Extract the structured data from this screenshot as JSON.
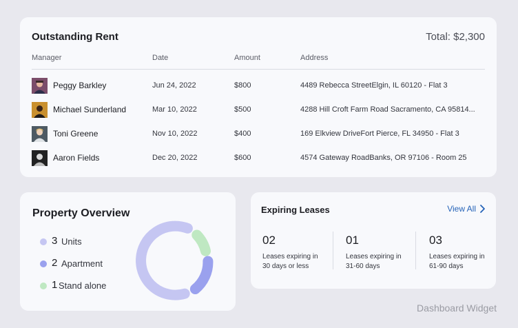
{
  "outstanding_rent": {
    "title": "Outstanding Rent",
    "total": "Total: $2,300",
    "columns": {
      "manager": "Manager",
      "date": "Date",
      "amount": "Amount",
      "address": "Address"
    },
    "rows": [
      {
        "manager": "Peggy Barkley",
        "date": "Jun 24, 2022",
        "amount": "$800",
        "address": "4489 Rebecca StreetElgin, IL 60120 - Flat 3",
        "avatar_color": "#7b4d6a"
      },
      {
        "manager": "Michael Sunderland",
        "date": "Mar 10, 2022",
        "amount": "$500",
        "address": "4288 Hill Croft Farm Road Sacramento, CA 95814...",
        "avatar_color": "#c9902e"
      },
      {
        "manager": "Toni Greene",
        "date": "Nov 10, 2022",
        "amount": "$400",
        "address": "169 Elkview DriveFort Pierce, FL 34950 - Flat 3",
        "avatar_color": "#4e5a63"
      },
      {
        "manager": "Aaron Fields",
        "date": "Dec 20, 2022",
        "amount": "$600",
        "address": "4574 Gateway RoadBanks, OR 97106 - Room 25",
        "avatar_color": "#222222"
      }
    ]
  },
  "property_overview": {
    "title": "Property Overview",
    "items": [
      {
        "count": "3",
        "label": "Units",
        "color": "#c5c6f2"
      },
      {
        "count": "2",
        "label": "Apartment",
        "color": "#9aa1ee"
      },
      {
        "count": "1",
        "label": "Stand alone",
        "color": "#bfe8c2"
      }
    ]
  },
  "expiring_leases": {
    "title": "Expiring Leases",
    "view_all": "View All",
    "periods": [
      {
        "count": "02",
        "line1": "Leases expiring in",
        "line2": "30 days or less"
      },
      {
        "count": "01",
        "line1": "Leases expiring in",
        "line2": "31-60 days"
      },
      {
        "count": "03",
        "line1": "Leases expiring in",
        "line2": "61-90 days"
      }
    ]
  },
  "footer": {
    "label": "Dashboard Widget"
  },
  "colors": {
    "link": "#2563b8",
    "card": "#f8f9fc",
    "background": "#e8e8ee"
  }
}
